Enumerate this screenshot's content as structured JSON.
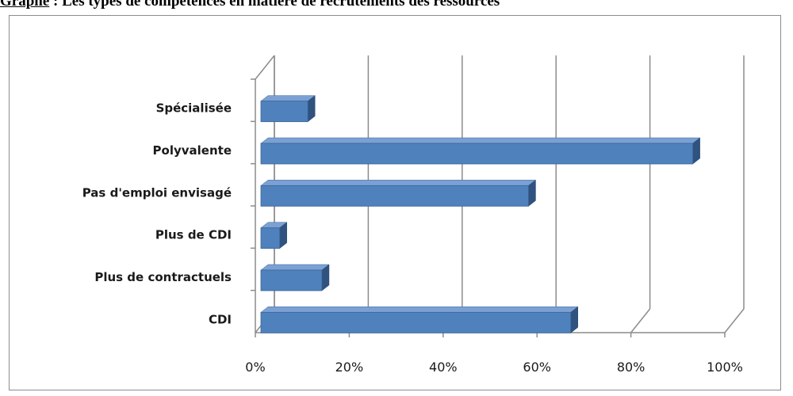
{
  "caption": {
    "prefix": "Graphe",
    "text": " : Les types de compétences en matière de recrutements des ressources"
  },
  "chart_data": {
    "type": "bar",
    "orientation": "horizontal",
    "style": "3d",
    "categories": [
      "Spécialisée",
      "Polyvalente",
      "Pas d'emploi envisagé",
      "Plus de CDI",
      "Plus de contractuels",
      "CDI"
    ],
    "values": [
      10,
      92,
      57,
      4,
      13,
      66
    ],
    "xlim": [
      0,
      100
    ],
    "xticks": [
      "0%",
      "20%",
      "40%",
      "60%",
      "80%",
      "100%"
    ],
    "grid": true,
    "legend": "none",
    "colors": {
      "bar_front": "#4f81bd",
      "bar_top": "#7ba0d4",
      "bar_side": "#30527f",
      "grid": "#8c8c8c"
    }
  }
}
